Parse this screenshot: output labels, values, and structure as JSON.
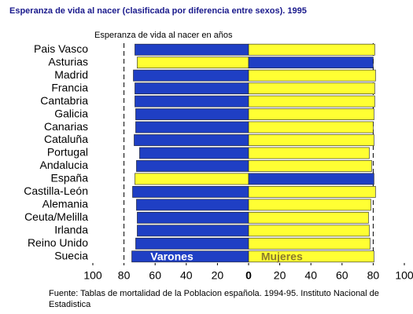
{
  "chart_data": {
    "type": "butterfly",
    "title": "Esperanza de vida al nacer (clasificada por diferencia entre sexos). 1995",
    "subtitle": "Esperanza de vida al nacer en años",
    "source": "Fuente: Tablas de mortalidad de la Poblacion española. 1994-95. Instituto Nacional de Estadistica",
    "categories": [
      "Pais Vasco",
      "Asturias",
      "Madrid",
      "Francia",
      "Cantabria",
      "Galicia",
      "Canarias",
      "Cataluña",
      "Portugal",
      "Andalucia",
      "España",
      "Castilla-León",
      "Alemania",
      "Ceuta/Melilla",
      "Irlanda",
      "Reino Unido",
      "Suecia"
    ],
    "series": [
      {
        "name": "Varones",
        "side": "left",
        "label_color": "#ffffff",
        "colors": [
          "#1f3fc4",
          "#ffff33",
          "#1f3fc4",
          "#1f3fc4",
          "#1f3fc4",
          "#1f3fc4",
          "#1f3fc4",
          "#1f3fc4",
          "#1f3fc4",
          "#1f3fc4",
          "#ffff33",
          "#1f3fc4",
          "#1f3fc4",
          "#1f3fc4",
          "#1f3fc4",
          "#1f3fc4",
          "#1f3fc4"
        ],
        "values": [
          73,
          71.5,
          74,
          73,
          73,
          72.5,
          72.5,
          73.5,
          70,
          72,
          73,
          74.5,
          72,
          71.5,
          71.5,
          72.5,
          75
        ]
      },
      {
        "name": "Mujeres",
        "side": "right",
        "label_color": "#8b7a2e",
        "colors": [
          "#ffff33",
          "#1f3fc4",
          "#ffff33",
          "#ffff33",
          "#ffff33",
          "#ffff33",
          "#ffff33",
          "#ffff33",
          "#ffff33",
          "#ffff33",
          "#1f3fc4",
          "#ffff33",
          "#ffff33",
          "#ffff33",
          "#ffff33",
          "#ffff33",
          "#ffff33"
        ],
        "values": [
          81,
          80,
          81.5,
          81,
          81,
          80.5,
          80,
          80.5,
          77.5,
          79,
          80.5,
          81.5,
          78.5,
          77,
          77.5,
          78,
          80.5
        ]
      }
    ],
    "xlim": [
      0,
      100
    ],
    "xticks": [
      0,
      20,
      40,
      60,
      80,
      100
    ],
    "reference_line": 80
  }
}
